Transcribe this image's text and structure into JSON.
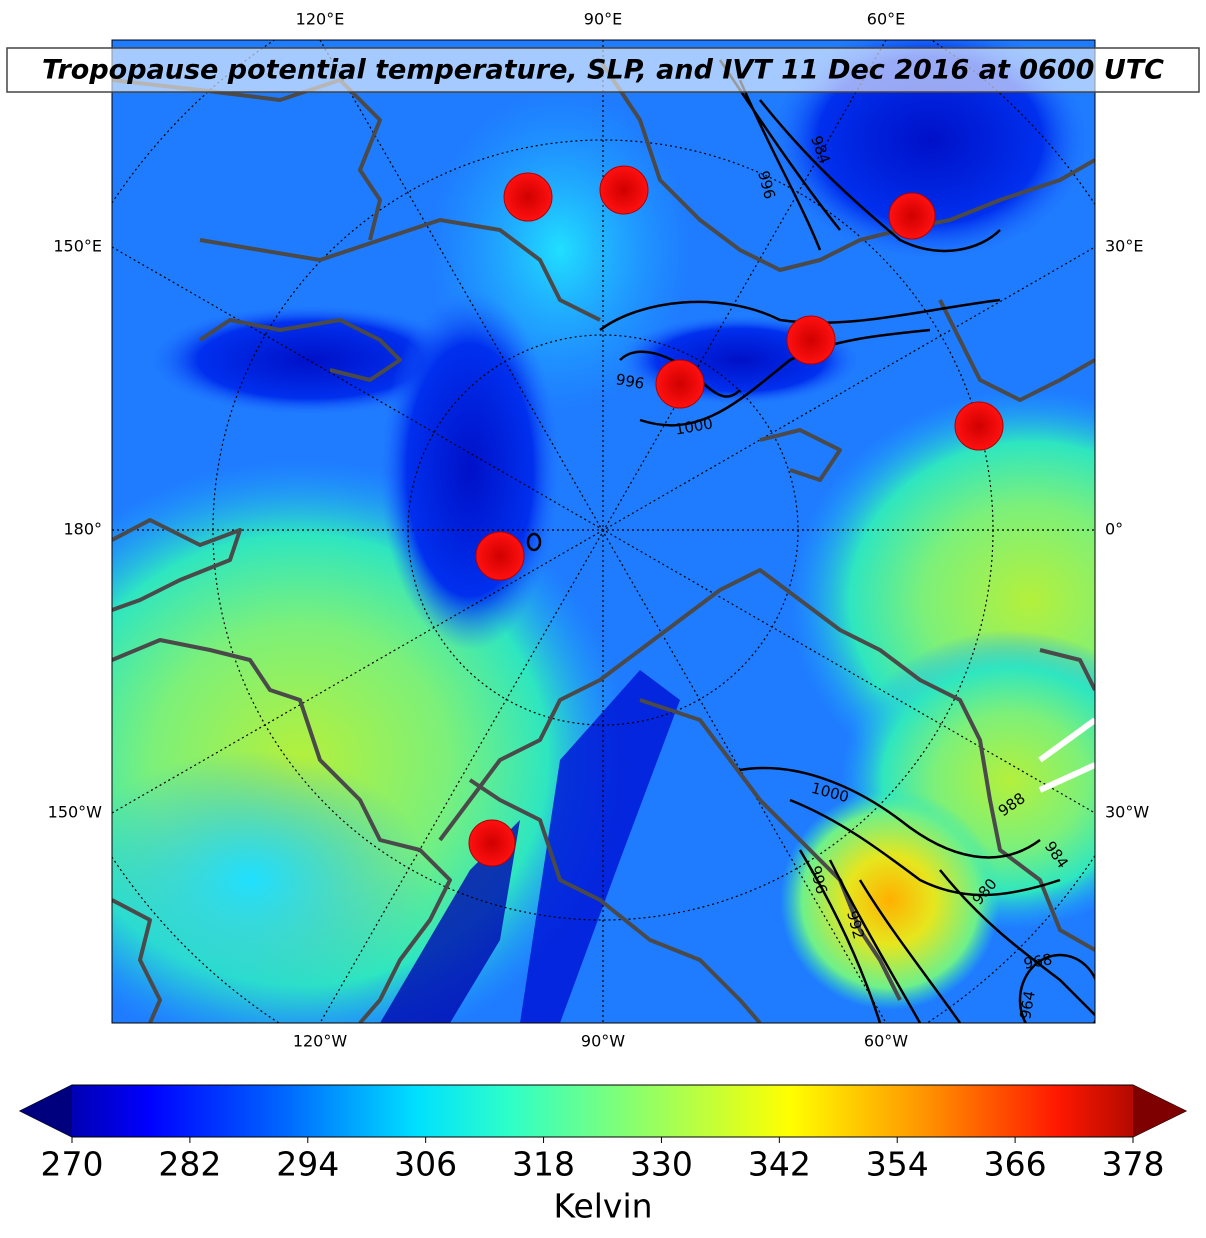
{
  "title": "Tropopause potential temperature, SLP, and IVT 11 Dec 2016 at 0600 UTC",
  "map": {
    "top_labels": [
      "120°E",
      "90°E",
      "60°E"
    ],
    "bottom_labels": [
      "120°W",
      "90°W",
      "60°W"
    ],
    "left_labels": [
      "150°E",
      "180°",
      "150°W"
    ],
    "right_labels": [
      "30°E",
      "0°",
      "30°W"
    ],
    "contour_labels": [
      "984",
      "996",
      "996",
      "1000",
      "1000",
      "988",
      "984",
      "980",
      "996",
      "992",
      "968",
      "964"
    ]
  },
  "colorbar": {
    "label": "Kelvin",
    "range": [
      270,
      378
    ],
    "ticks": [
      270,
      282,
      294,
      306,
      318,
      330,
      342,
      354,
      366,
      378
    ]
  }
}
